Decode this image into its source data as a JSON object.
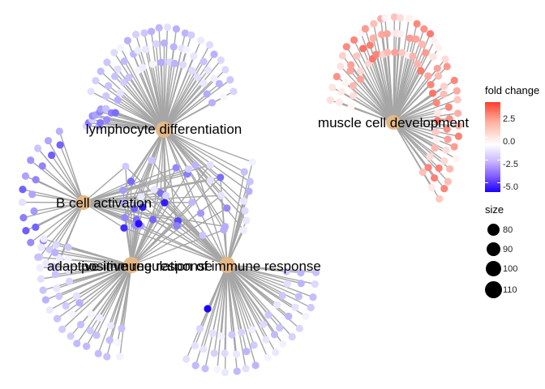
{
  "hubs": [
    {
      "id": "lymph",
      "label": "lymphocyte differentiation"
    },
    {
      "id": "bcell",
      "label": "B cell activation"
    },
    {
      "id": "adaptive",
      "label": "adaptive immune response"
    },
    {
      "id": "posreg",
      "label": "positive regulation of immune response"
    },
    {
      "id": "muscle",
      "label": "muscle cell development"
    }
  ],
  "legend": {
    "color_title": "fold change",
    "color_ticks": [
      "2.5",
      "0.0",
      "-2.5",
      "-5.0"
    ],
    "size_title": "size",
    "size_entries": [
      "80",
      "90",
      "100",
      "110"
    ]
  },
  "colors": {
    "hub": "#e3b886",
    "edge": "#a6a6a6",
    "high": "#ff3d2b",
    "mid": "#ffffff",
    "low": "#1a00ff"
  }
}
